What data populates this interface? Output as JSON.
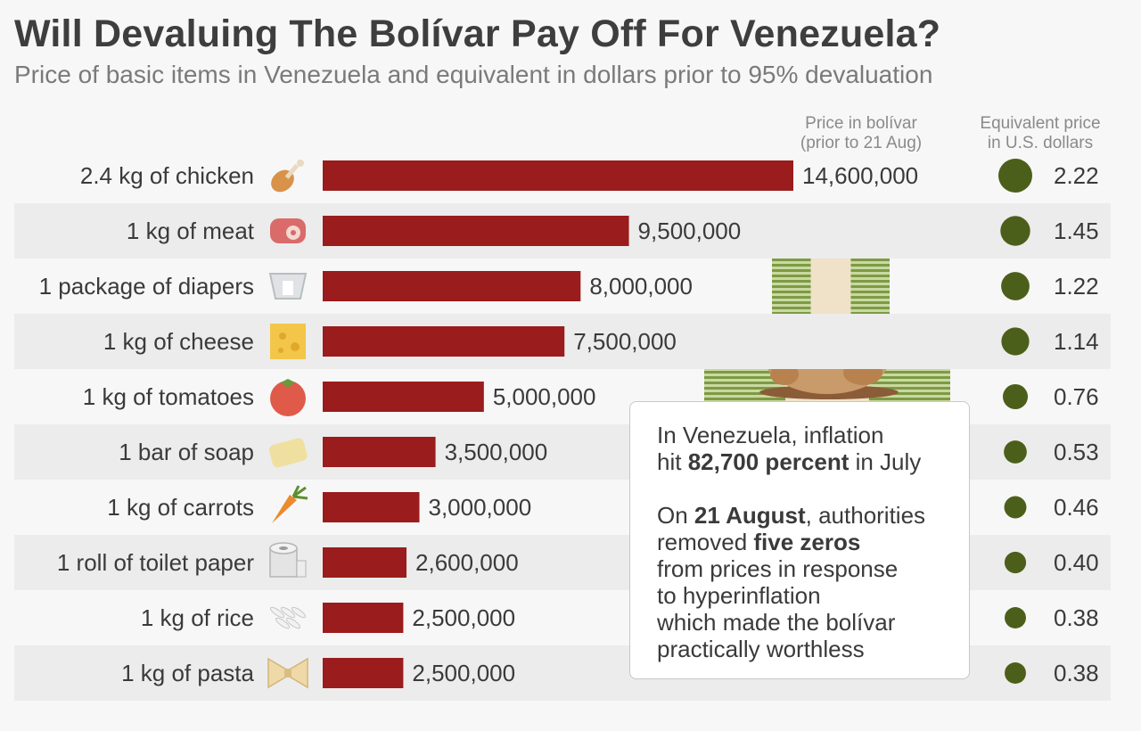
{
  "title": "Will Devaluing The Bolívar Pay Off For Venezuela?",
  "subtitle": "Price of basic items in Venezuela and equivalent in dollars prior to 95% devaluation",
  "headers": {
    "bolivar_line1": "Price in bolívar",
    "bolivar_line2": "(prior to 21 Aug)",
    "usd_line1": "Equivalent price",
    "usd_line2": "in U.S. dollars"
  },
  "callout": {
    "p1_a": "In Venezuela, inflation",
    "p1_b": "hit ",
    "p1_bold": "82,700 percent",
    "p1_c": " in July",
    "p2_a": "On ",
    "p2_bold1": "21 August",
    "p2_b": ", authorities",
    "p2_c": "removed ",
    "p2_bold2": "five zeros",
    "p2_d": "from prices in response",
    "p2_e": "to hyperinflation",
    "p2_f": "which made the bolívar",
    "p2_g": "practically worthless"
  },
  "colors": {
    "bar": "#9a1c1c",
    "dot": "#4c5f1a",
    "row_band": "#ececec"
  },
  "chart_data": {
    "type": "bar",
    "orientation": "horizontal",
    "categories": [
      "2.4 kg of chicken",
      "1 kg of meat",
      "1 package of diapers",
      "1 kg of cheese",
      "1 kg of tomatoes",
      "1 bar of soap",
      "1 kg of carrots",
      "1 roll of toilet paper",
      "1 kg of rice",
      "1 kg of pasta"
    ],
    "icons": [
      "chicken-leg-icon",
      "meat-icon",
      "diaper-icon",
      "cheese-icon",
      "tomato-icon",
      "soap-icon",
      "carrot-icon",
      "toilet-paper-icon",
      "rice-icon",
      "pasta-icon"
    ],
    "values": [
      14600000,
      9500000,
      8000000,
      7500000,
      5000000,
      3500000,
      3000000,
      2600000,
      2500000,
      2500000
    ],
    "value_labels": [
      "14,600,000",
      "9,500,000",
      "8,000,000",
      "7,500,000",
      "5,000,000",
      "3,500,000",
      "3,000,000",
      "2,600,000",
      "2,500,000",
      "2,500,000"
    ],
    "usd_values": [
      2.22,
      1.45,
      1.22,
      1.14,
      0.76,
      0.53,
      0.46,
      0.4,
      0.38,
      0.38
    ],
    "usd_labels": [
      "2.22",
      "1.45",
      "1.22",
      "1.14",
      "0.76",
      "0.53",
      "0.46",
      "0.40",
      "0.38",
      "0.38"
    ],
    "xlim": [
      0,
      14600000
    ]
  }
}
